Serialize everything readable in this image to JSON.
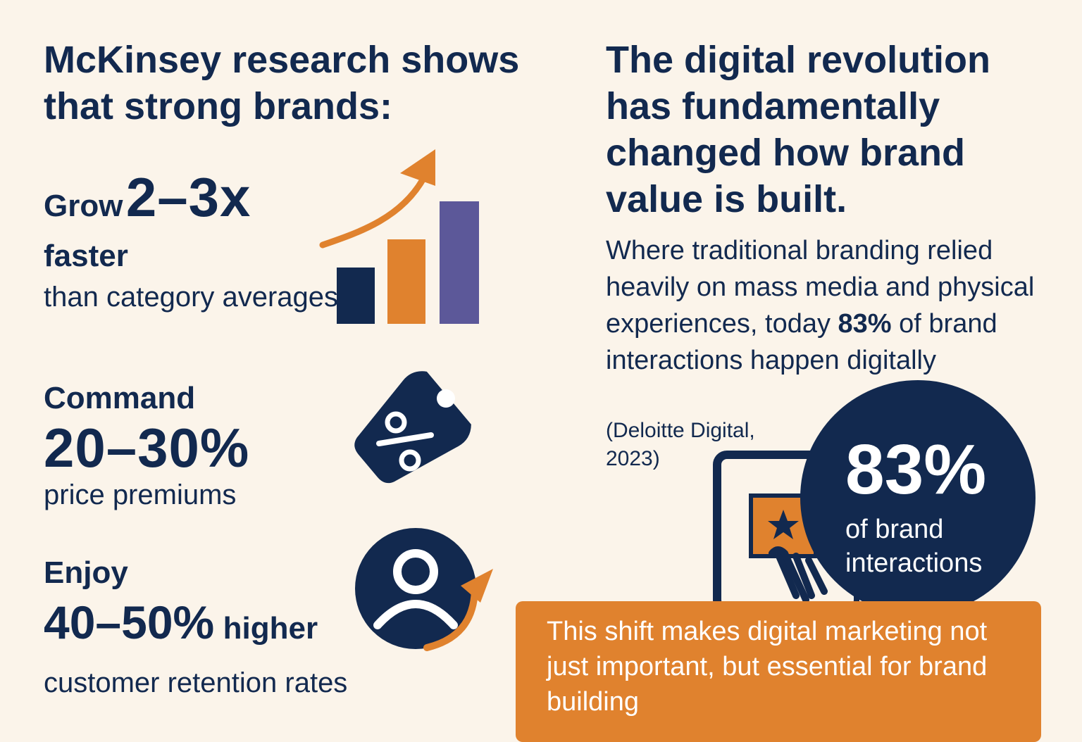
{
  "left": {
    "heading": "McKinsey research shows that strong brands:",
    "stats": [
      {
        "lead": "Grow",
        "value": "2–3x",
        "emphasis": "faster",
        "sub": "than category averages",
        "icon": "growth-bar-chart-icon"
      },
      {
        "lead": "Command",
        "value": "20–30%",
        "sub": "price premiums",
        "icon": "percent-tag-icon"
      },
      {
        "lead": "Enjoy",
        "value": "40–50%",
        "emphasis": "higher",
        "sub": "customer retention rates",
        "icon": "user-retention-icon"
      }
    ]
  },
  "right": {
    "heading": "The digital revolution has fundamentally changed how brand value is built.",
    "para_before": "Where traditional branding relied heavily on mass media and physical experiences, today ",
    "para_highlight": "83%",
    "para_after": " of brand interactions happen digitally",
    "source": "(Deloitte Digital, 2023)",
    "callout": {
      "value": "83%",
      "label": "of brand interactions"
    },
    "banner": "This shift makes digital marketing not just important, but essential for brand building"
  },
  "colors": {
    "navy": "#12294f",
    "orange": "#e0822e",
    "purple": "#5c5899",
    "background": "#fbf4ea"
  }
}
